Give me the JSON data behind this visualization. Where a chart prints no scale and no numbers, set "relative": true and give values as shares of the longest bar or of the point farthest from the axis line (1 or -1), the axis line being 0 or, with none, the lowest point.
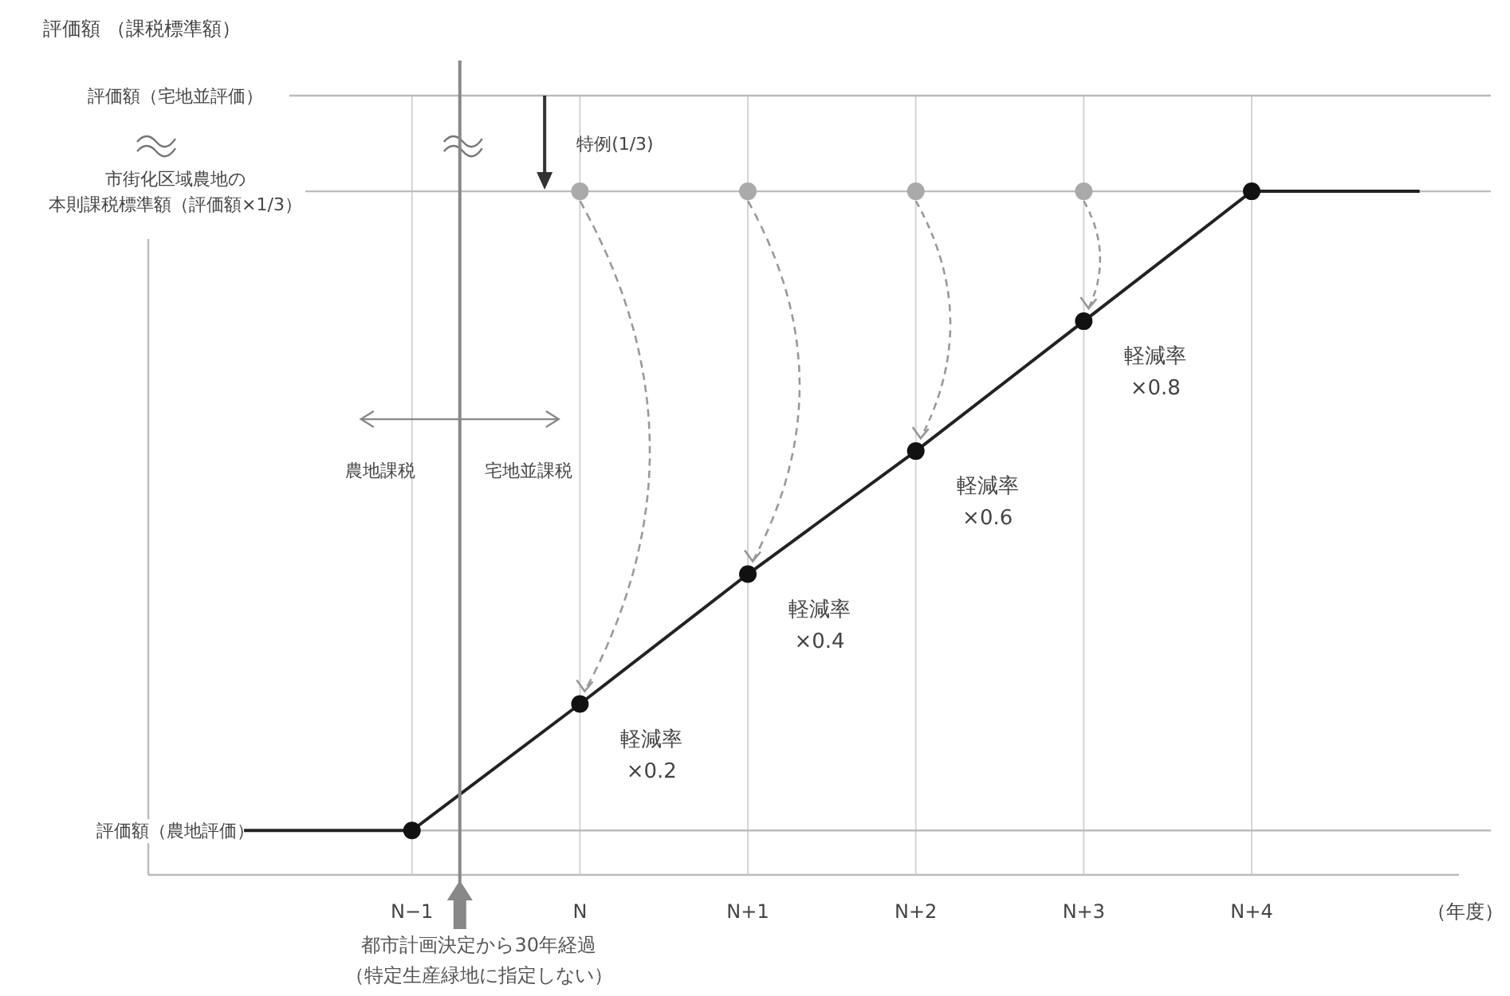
{
  "chart_data": {
    "type": "line",
    "relative": true,
    "xlabel": "（年度）",
    "categories": [
      null,
      "N−1",
      "N",
      "N+1",
      "N+2",
      "N+3",
      "N+4",
      null
    ],
    "grid": "x",
    "series": [
      {
        "color": "#222222",
        "values": [
          0.065,
          0.065,
          0.25,
          0.44,
          0.62,
          0.81,
          1,
          1
        ]
      },
      {
        "type": "scatter",
        "marker": "circle",
        "color": "#111111",
        "values": [
          null,
          0.065,
          0.25,
          0.44,
          0.62,
          0.81,
          1,
          null
        ]
      },
      {
        "type": "scatter",
        "marker": "circle",
        "color": "#aaaaaa",
        "values": [
          null,
          null,
          1,
          1,
          1,
          1,
          null,
          null
        ]
      }
    ],
    "ref_lines": [
      {
        "axis": "y",
        "value": 0.065,
        "label": "評価額（農地評価）",
        "color": "#bbbbbb"
      },
      {
        "axis": "y",
        "value": 1,
        "label": "市街化区域農地の本則課税標準額（評価額×1/3）",
        "color": "#bbbbbb"
      },
      {
        "axis": "y",
        "value": 1.14,
        "label": "評価額（宅地並評価）",
        "color": "#bbbbbb"
      }
    ],
    "annotations": [
      "評価額 （課税標準額）",
      "特例(1/3)",
      "農地課税",
      "宅地並課税",
      "都市計画決定から30年経過（特定生産緑地に指定しない）",
      {
        "text": "軽減率 ×0.2",
        "x": "N",
        "y": 0.25
      },
      {
        "text": "軽減率 ×0.4",
        "x": "N+1",
        "y": 0.44
      },
      {
        "text": "軽減率 ×0.6",
        "x": "N+2",
        "y": 0.62
      },
      {
        "text": "軽減率 ×0.8",
        "x": "N+3",
        "y": 0.81
      }
    ]
  }
}
